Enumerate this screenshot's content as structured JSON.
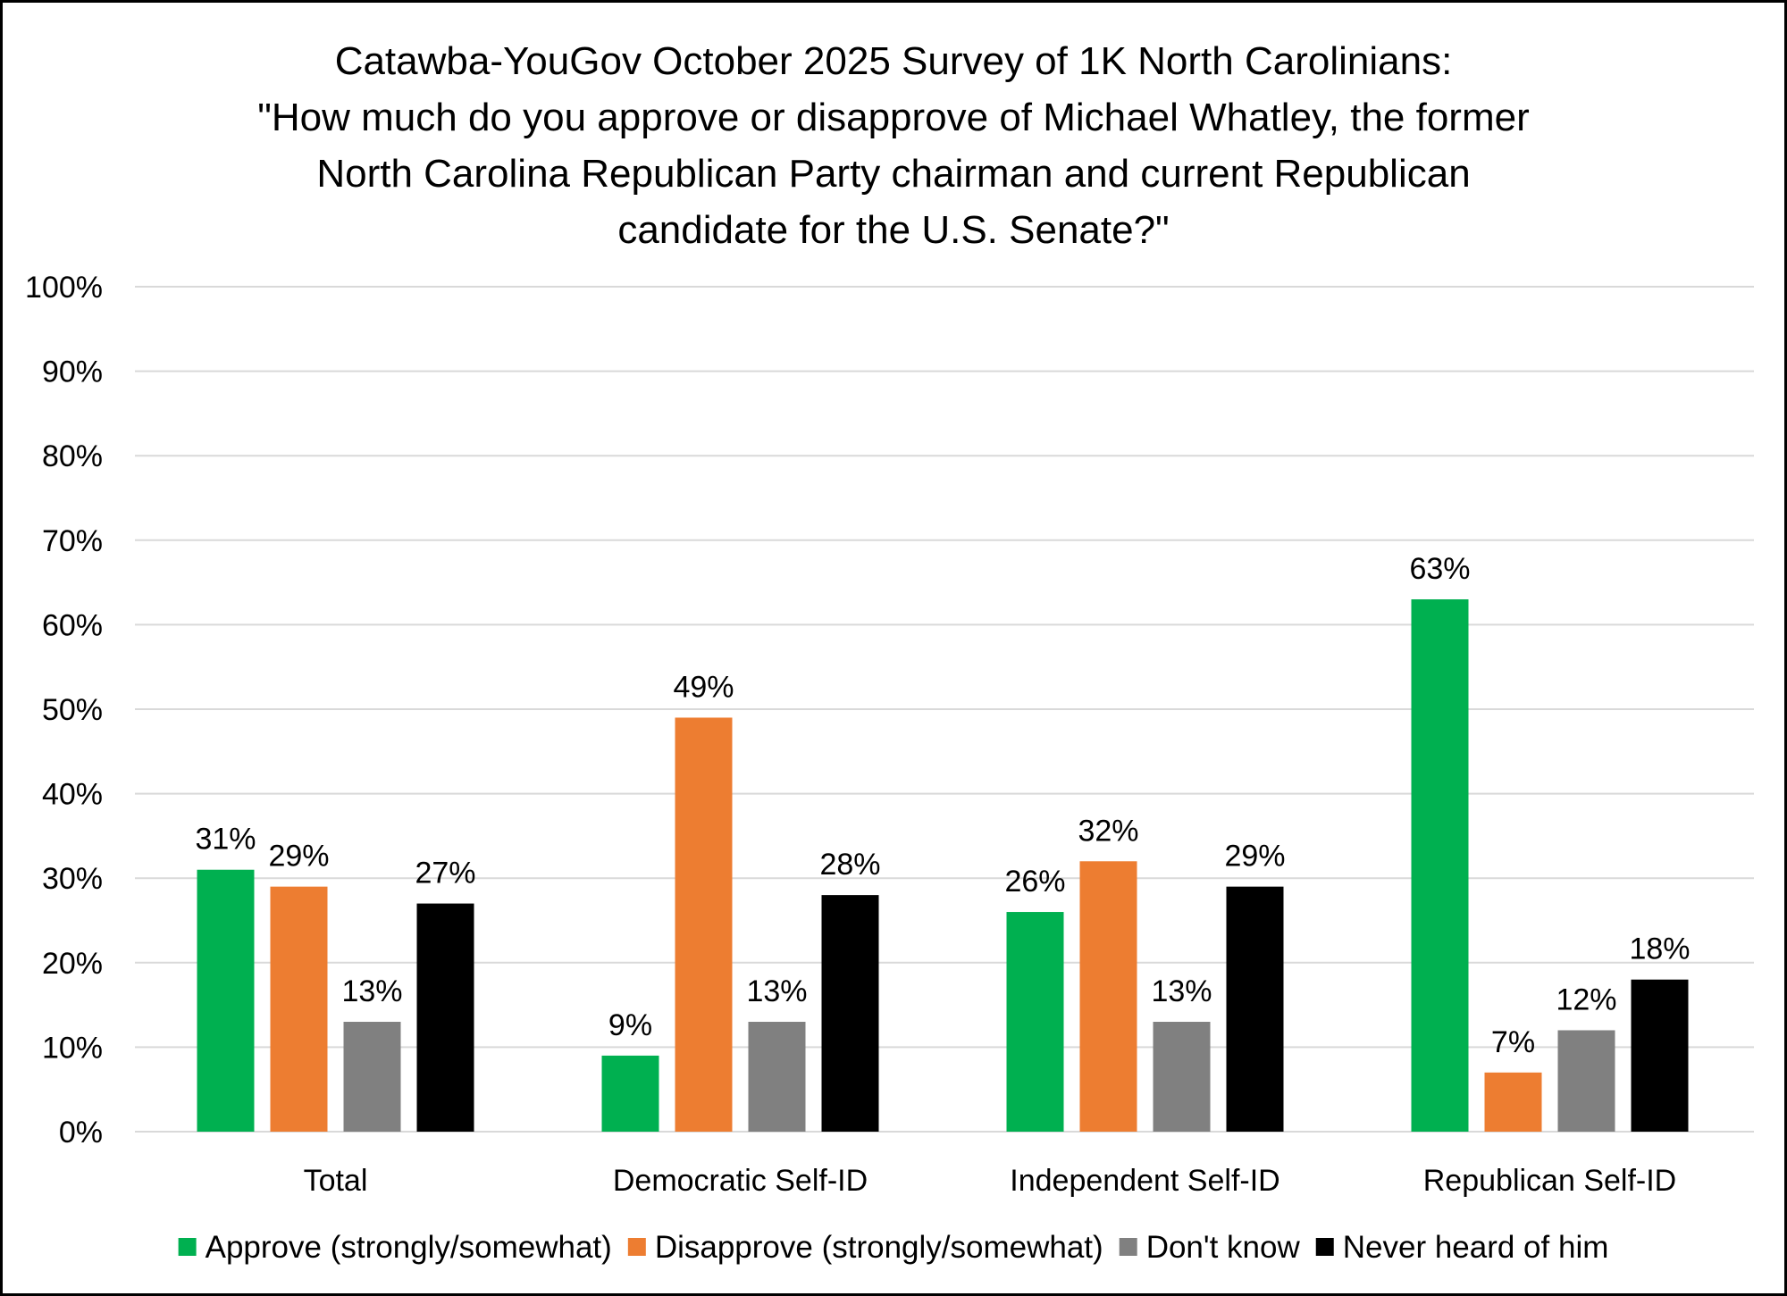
{
  "chart_data": {
    "type": "bar",
    "title": [
      "Catawba-YouGov October 2025 Survey of 1K North Carolinians:",
      "\"How much do you approve or disapprove of Michael Whatley, the former",
      "North Carolina Republican Party chairman and current Republican",
      "candidate for the U.S. Senate?\""
    ],
    "categories": [
      "Total",
      "Democratic Self-ID",
      "Independent Self-ID",
      "Republican Self-ID"
    ],
    "series": [
      {
        "name": "Approve (strongly/somewhat)",
        "color": "#00B050",
        "values": [
          31,
          9,
          26,
          63
        ],
        "labels": [
          "31%",
          "9%",
          "26%",
          "63%"
        ]
      },
      {
        "name": "Disapprove (strongly/somewhat)",
        "color": "#ED7D31",
        "values": [
          29,
          49,
          32,
          7
        ],
        "labels": [
          "29%",
          "49%",
          "32%",
          "7%"
        ]
      },
      {
        "name": "Don't know",
        "color": "#808080",
        "values": [
          13,
          13,
          13,
          12
        ],
        "labels": [
          "13%",
          "13%",
          "13%",
          "12%"
        ]
      },
      {
        "name": "Never heard of him",
        "color": "#000000",
        "values": [
          27,
          28,
          29,
          18
        ],
        "labels": [
          "27%",
          "28%",
          "29%",
          "18%"
        ]
      }
    ],
    "yticks": [
      "0%",
      "10%",
      "20%",
      "30%",
      "40%",
      "50%",
      "60%",
      "70%",
      "80%",
      "90%",
      "100%"
    ],
    "ylim": [
      0,
      100
    ],
    "grid": true,
    "gridColor": "#D9D9D9",
    "legend_position": "bottom"
  }
}
